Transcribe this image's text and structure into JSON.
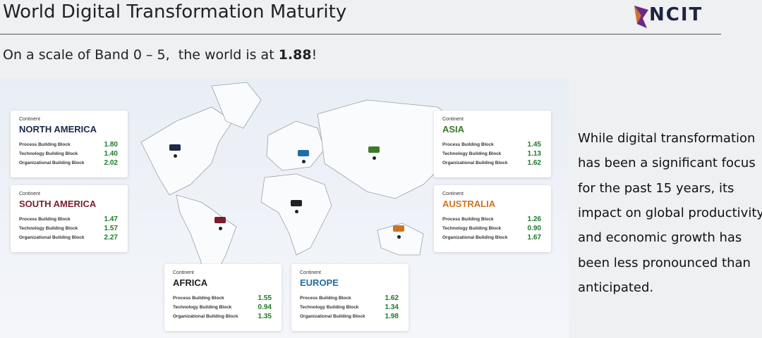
{
  "header": {
    "title": "World Digital Transformation Maturity",
    "logo": "NCIT"
  },
  "subtitle": {
    "text": "On a scale of Band 0 – 5,  the world is at ",
    "score": "1.88",
    "end": "!"
  },
  "continents": [
    {
      "label": "Continent",
      "name": "NORTH AMERICA",
      "rows": [
        [
          "Process Building Block",
          "1.80"
        ],
        [
          "Technology Building Block",
          "1.40"
        ],
        [
          "Organizational Building Block",
          "2.02"
        ]
      ]
    },
    {
      "label": "Continent",
      "name": "SOUTH AMERICA",
      "rows": [
        [
          "Process Building Block",
          "1.47"
        ],
        [
          "Technology Building Block",
          "1.57"
        ],
        [
          "Organizational Building Block",
          "2.27"
        ]
      ]
    },
    {
      "label": "Continent",
      "name": "AFRICA",
      "rows": [
        [
          "Process Building Block",
          "1.55"
        ],
        [
          "Technology Building Block",
          "0.94"
        ],
        [
          "Organizational Building Block",
          "1.35"
        ]
      ]
    },
    {
      "label": "Continent",
      "name": "EUROPE",
      "rows": [
        [
          "Process Building Block",
          "1.62"
        ],
        [
          "Technology Building Block",
          "1.34"
        ],
        [
          "Organizational Building Block",
          "1.98"
        ]
      ]
    },
    {
      "label": "Continent",
      "name": "ASIA",
      "rows": [
        [
          "Process Building Block",
          "1.45"
        ],
        [
          "Technology Building Block",
          "1.13"
        ],
        [
          "Organizational Building Block",
          "1.62"
        ]
      ]
    },
    {
      "label": "Continent",
      "name": "AUSTRALIA",
      "rows": [
        [
          "Process Building Block",
          "1.26"
        ],
        [
          "Technology Building Block",
          "0.90"
        ],
        [
          "Organizational Building Block",
          "1.67"
        ]
      ]
    }
  ],
  "note": {
    "lines": [
      "While digital transformation",
      "has been a significant focus",
      "for the past 15 years, its",
      "impact on global productivity",
      "and economic growth has",
      "been less pronounced than",
      "anticipated."
    ]
  }
}
